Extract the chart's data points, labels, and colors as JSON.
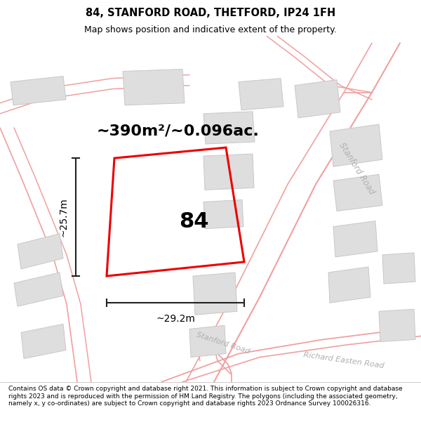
{
  "title": "84, STANFORD ROAD, THETFORD, IP24 1FH",
  "subtitle": "Map shows position and indicative extent of the property.",
  "footer": "Contains OS data © Crown copyright and database right 2021. This information is subject to Crown copyright and database rights 2023 and is reproduced with the permission of HM Land Registry. The polygons (including the associated geometry, namely x, y co-ordinates) are subject to Crown copyright and database rights 2023 Ordnance Survey 100026316.",
  "area_label": "~390m²/~0.096ac.",
  "width_label": "~29.2m",
  "height_label": "~25.7m",
  "property_number": "84",
  "bg_color": "#f8f8f8",
  "building_fill": "#dedede",
  "building_edge": "#c8c8c8",
  "road_line_color": "#f0a0a0",
  "property_stroke": "#ee0000",
  "dim_color": "#222222",
  "road_label_color": "#b0b0b0",
  "title_fontsize": 10.5,
  "subtitle_fontsize": 9,
  "footer_fontsize": 6.5,
  "area_fontsize": 16,
  "dim_fontsize": 10,
  "prop_label_fontsize": 22
}
